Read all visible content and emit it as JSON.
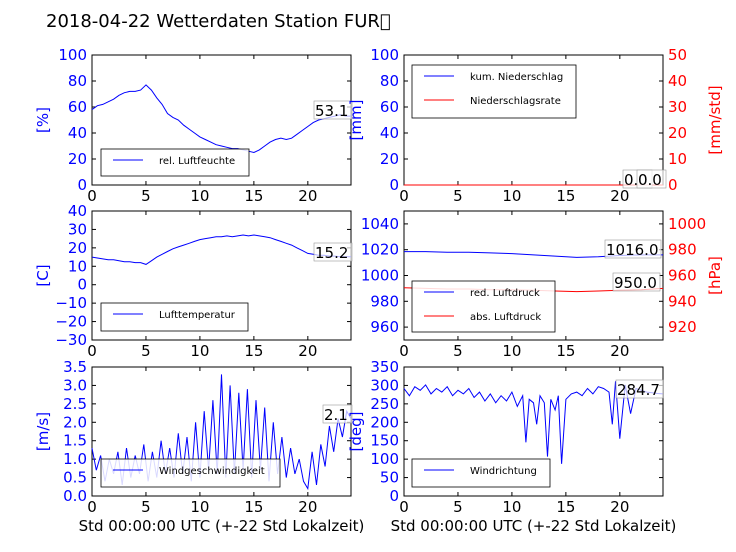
{
  "title": "2018-04-22 Wetterdaten Station FUR\u0000",
  "colors": {
    "primary": "#0000ff",
    "secondary": "#ff0000",
    "axis": "#000000"
  },
  "chart_data": [
    {
      "type": "line",
      "ylabel": "[%]",
      "ylim": [
        0,
        100
      ],
      "xlim": [
        0,
        24
      ],
      "xticks": [
        "0",
        "5",
        "10",
        "15",
        "20"
      ],
      "yticks": [
        "0",
        "20",
        "40",
        "60",
        "80",
        "100"
      ],
      "legend": {
        "placement": "lower-left",
        "entries": [
          "rel. Luftfeuchte"
        ]
      },
      "annotation": "53.1",
      "series": [
        {
          "name": "rel. Luftfeuchte",
          "color": "#0000ff",
          "x": [
            0,
            0.5,
            1,
            1.5,
            2,
            2.5,
            3,
            3.5,
            4,
            4.5,
            5,
            5.5,
            6,
            6.5,
            7,
            7.5,
            8,
            8.5,
            9,
            9.5,
            10,
            10.5,
            11,
            11.5,
            12,
            12.5,
            13,
            13.5,
            14,
            14.5,
            15,
            15.5,
            16,
            16.5,
            17,
            17.5,
            18,
            18.5,
            19,
            19.5,
            20,
            20.5,
            21,
            21.5,
            22,
            22.5,
            23,
            23.5,
            24
          ],
          "y": [
            58,
            61,
            62,
            64,
            66,
            69,
            71,
            72,
            72,
            73,
            77,
            73,
            67,
            62,
            55,
            52,
            50,
            46,
            43,
            40,
            37,
            35,
            33,
            31,
            30,
            29,
            28,
            28,
            27,
            26,
            25,
            27,
            30,
            33,
            35,
            36,
            35,
            36,
            39,
            42,
            45,
            48,
            50,
            51,
            52,
            53,
            54,
            53,
            53
          ]
        }
      ]
    },
    {
      "type": "line",
      "ylabel": "[mm]",
      "ylabel2": "[mm/std]",
      "ylim": [
        0,
        100
      ],
      "ylim2": [
        0,
        50
      ],
      "xlim": [
        0,
        24
      ],
      "xticks": [
        "0",
        "5",
        "10",
        "15",
        "20"
      ],
      "yticks": [
        "0",
        "20",
        "40",
        "60",
        "80",
        "100"
      ],
      "yticks2": [
        "0",
        "10",
        "20",
        "30",
        "40",
        "50"
      ],
      "legend": {
        "placement": "upper-left",
        "entries": [
          "kum. Niederschlag",
          "Niederschlagsrate"
        ]
      },
      "annotations": [
        "0.0",
        "0.0"
      ],
      "series": [
        {
          "name": "kum. Niederschlag",
          "color": "#0000ff",
          "axis": "left",
          "x": [
            0,
            24
          ],
          "y": [
            0,
            0
          ]
        },
        {
          "name": "Niederschlagsrate",
          "color": "#ff0000",
          "axis": "right",
          "x": [
            0,
            24
          ],
          "y": [
            0,
            0
          ]
        }
      ]
    },
    {
      "type": "line",
      "ylabel": "[C]",
      "ylim": [
        -30,
        40
      ],
      "xlim": [
        0,
        24
      ],
      "xticks": [
        "0",
        "5",
        "10",
        "15",
        "20"
      ],
      "yticks": [
        "−30",
        "−20",
        "−10",
        "0",
        "10",
        "20",
        "30",
        "40"
      ],
      "legend": {
        "placement": "lower-left",
        "entries": [
          "Lufttemperatur"
        ]
      },
      "annotation": "15.2",
      "series": [
        {
          "name": "Lufttemperatur",
          "color": "#0000ff",
          "x": [
            0,
            0.5,
            1,
            1.5,
            2,
            2.5,
            3,
            3.5,
            4,
            4.5,
            5,
            5.5,
            6,
            6.5,
            7,
            7.5,
            8,
            8.5,
            9,
            9.5,
            10,
            10.5,
            11,
            11.5,
            12,
            12.5,
            13,
            13.5,
            14,
            14.5,
            15,
            15.5,
            16,
            16.5,
            17,
            17.5,
            18,
            18.5,
            19,
            19.5,
            20,
            20.5,
            21,
            21.5,
            22,
            22.5,
            23,
            23.5,
            24
          ],
          "y": [
            15,
            14.5,
            14,
            13.5,
            13.5,
            13,
            12.5,
            12.5,
            12,
            12,
            11,
            13,
            15,
            16.5,
            18,
            19.5,
            20.5,
            21.5,
            22.5,
            23.5,
            24.5,
            25,
            25.5,
            26,
            26,
            26.5,
            26,
            26.5,
            27,
            26.5,
            27,
            26.5,
            26,
            25.5,
            24.5,
            23.5,
            22.5,
            21.5,
            20,
            18.5,
            17,
            16.5,
            16,
            16,
            15.5,
            15.5,
            15.2,
            15.2,
            15.2
          ]
        }
      ]
    },
    {
      "type": "line",
      "ylabel": "",
      "ylabel2": "[hPa]",
      "ylim": [
        950,
        1050
      ],
      "ylim2": [
        910,
        1010
      ],
      "xlim": [
        0,
        24
      ],
      "xticks": [
        "0",
        "5",
        "10",
        "15",
        "20"
      ],
      "yticks": [
        "960",
        "980",
        "1000",
        "1020",
        "1040"
      ],
      "yticks2": [
        "920",
        "940",
        "960",
        "980",
        "1000"
      ],
      "legend": {
        "placement": "lower-left",
        "entries": [
          "red. Luftdruck",
          "abs. Luftdruck"
        ]
      },
      "annotations": [
        "1016.0",
        "950.0"
      ],
      "series": [
        {
          "name": "red. Luftdruck",
          "color": "#0000ff",
          "axis": "left",
          "x": [
            0,
            2,
            4,
            6,
            8,
            10,
            12,
            14,
            16,
            18,
            20,
            22,
            24
          ],
          "y": [
            1018.5,
            1018.5,
            1018,
            1018,
            1017.5,
            1017,
            1016,
            1015,
            1014,
            1014.5,
            1015.5,
            1016,
            1016
          ]
        },
        {
          "name": "abs. Luftdruck",
          "color": "#ff0000",
          "axis": "right",
          "x": [
            0,
            2,
            4,
            6,
            8,
            10,
            12,
            14,
            16,
            18,
            20,
            22,
            24
          ],
          "y": [
            950.5,
            950,
            949.5,
            949.5,
            949,
            949,
            948.5,
            948,
            947.5,
            948,
            948.5,
            949,
            950
          ]
        }
      ]
    },
    {
      "type": "line",
      "ylabel": "[m/s]",
      "xlabel": "Std 00:00:00 UTC (+-22 Std Lokalzeit)",
      "ylim": [
        0,
        3.5
      ],
      "xlim": [
        0,
        24
      ],
      "xticks": [
        "0",
        "5",
        "10",
        "15",
        "20"
      ],
      "yticks": [
        "0.0",
        "0.5",
        "1.0",
        "1.5",
        "2.0",
        "2.5",
        "3.0",
        "3.5"
      ],
      "legend": {
        "placement": "lower-left",
        "entries": [
          "Windgeschwindigkeit"
        ]
      },
      "annotation": "2.1",
      "series": [
        {
          "name": "Windgeschwindigkeit",
          "color": "#0000ff",
          "x": [
            0,
            0.4,
            0.8,
            1.2,
            1.6,
            2,
            2.4,
            2.8,
            3.2,
            3.6,
            4,
            4.4,
            4.8,
            5.2,
            5.6,
            6,
            6.4,
            6.8,
            7.2,
            7.6,
            8,
            8.4,
            8.8,
            9.2,
            9.6,
            10,
            10.4,
            10.8,
            11.2,
            11.6,
            12,
            12.4,
            12.8,
            13.2,
            13.6,
            14,
            14.4,
            14.8,
            15.2,
            15.6,
            16,
            16.4,
            16.8,
            17.2,
            17.6,
            18,
            18.4,
            18.8,
            19.2,
            19.6,
            20,
            20.4,
            20.8,
            21.2,
            21.6,
            22,
            22.4,
            22.8,
            23.2,
            23.6,
            24
          ],
          "y": [
            1.3,
            0.7,
            1.1,
            0.4,
            1.0,
            0.6,
            1.2,
            0.3,
            1.3,
            0.5,
            1.1,
            0.6,
            1.4,
            0.4,
            1.2,
            0.5,
            1.5,
            0.6,
            1.3,
            0.5,
            1.7,
            0.6,
            1.6,
            0.4,
            2.0,
            0.5,
            2.3,
            0.7,
            2.6,
            0.6,
            3.3,
            0.5,
            3.0,
            0.6,
            2.8,
            0.7,
            2.9,
            0.5,
            2.6,
            0.7,
            2.4,
            0.4,
            2.0,
            0.6,
            1.6,
            0.5,
            1.3,
            0.6,
            1.0,
            0.4,
            0.2,
            1.2,
            0.3,
            1.4,
            0.8,
            1.9,
            1.2,
            2.1,
            1.6,
            2.3,
            2.1
          ]
        }
      ]
    },
    {
      "type": "line",
      "ylabel": "[deg]",
      "xlabel": "Std 00:00:00 UTC (+-22 Std Lokalzeit)",
      "ylim": [
        0,
        360
      ],
      "xlim": [
        0,
        24
      ],
      "xticks": [
        "0",
        "5",
        "10",
        "15",
        "20"
      ],
      "yticks": [
        "0",
        "50",
        "100",
        "150",
        "200",
        "250",
        "300",
        "350"
      ],
      "legend": {
        "placement": "lower-left",
        "entries": [
          "Windrichtung"
        ]
      },
      "annotation": "284.7",
      "series": [
        {
          "name": "Windrichtung",
          "color": "#0000ff",
          "x": [
            0,
            0.5,
            1,
            1.5,
            2,
            2.5,
            3,
            3.5,
            4,
            4.5,
            5,
            5.5,
            6,
            6.5,
            7,
            7.5,
            8,
            8.5,
            9,
            9.5,
            10,
            10.5,
            11,
            11.3,
            11.6,
            12,
            12.3,
            12.6,
            13,
            13.3,
            13.6,
            14,
            14.3,
            14.6,
            15,
            15.5,
            16,
            16.5,
            17,
            17.5,
            18,
            18.5,
            19,
            19.3,
            19.6,
            20,
            20.5,
            21,
            21.5,
            22,
            22.5,
            23,
            23.5,
            24
          ],
          "y": [
            300,
            280,
            305,
            295,
            310,
            285,
            300,
            290,
            305,
            280,
            295,
            285,
            300,
            275,
            290,
            265,
            285,
            260,
            280,
            265,
            290,
            250,
            280,
            150,
            270,
            260,
            200,
            280,
            260,
            110,
            270,
            240,
            280,
            90,
            270,
            285,
            290,
            280,
            300,
            285,
            305,
            300,
            290,
            200,
            320,
            160,
            310,
            230,
            300,
            295,
            290,
            288,
            286,
            285
          ]
        }
      ]
    }
  ]
}
